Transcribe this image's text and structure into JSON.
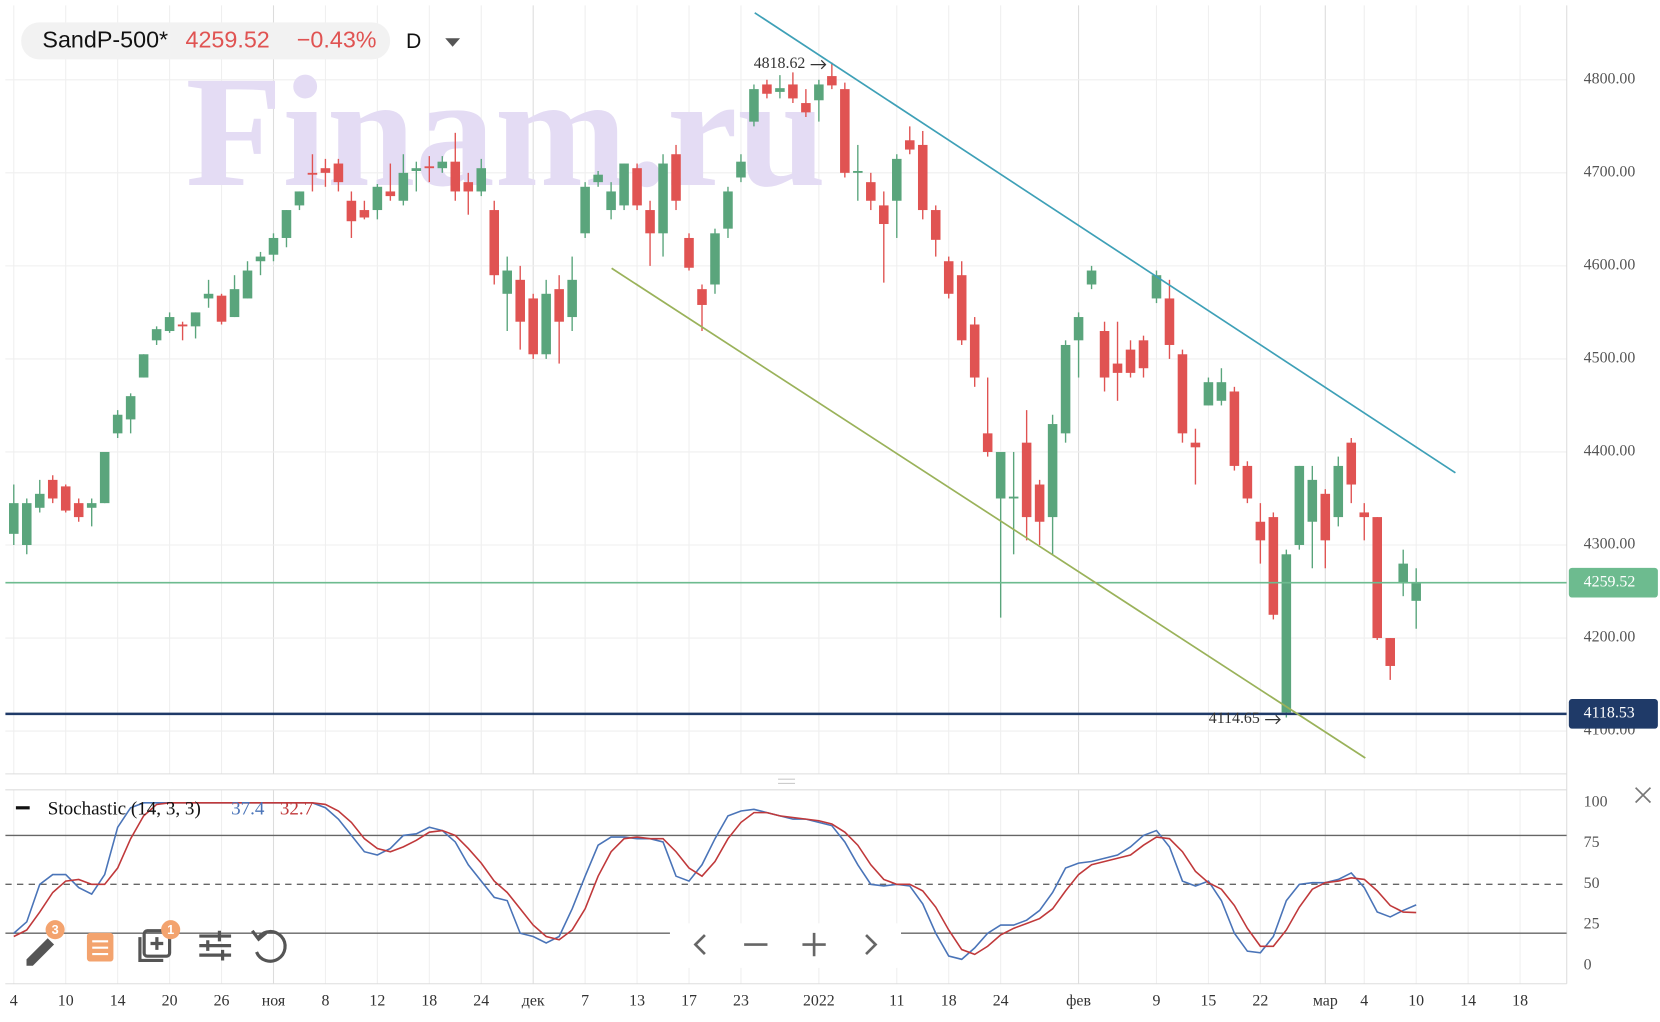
{
  "header": {
    "symbol": "SandP-500*",
    "change": "−0.43%",
    "interval": "D"
  },
  "watermark": "Finam.ru",
  "toolbar": {
    "badges": [
      "3",
      "1"
    ]
  },
  "chart_data": [
    {
      "type": "candlestick",
      "categories": [
        "4",
        null,
        null,
        null,
        "10",
        null,
        null,
        null,
        "14",
        null,
        null,
        null,
        "20",
        null,
        null,
        null,
        "26",
        null,
        null,
        null,
        "ноя",
        null,
        null,
        null,
        "8",
        null,
        null,
        null,
        "12",
        null,
        null,
        null,
        "18",
        null,
        null,
        null,
        "24",
        null,
        null,
        null,
        "дек",
        null,
        null,
        null,
        "7",
        null,
        null,
        null,
        "13",
        null,
        null,
        null,
        "17",
        null,
        null,
        null,
        "23",
        null,
        null,
        null,
        null,
        null,
        "2022",
        null,
        null,
        null,
        null,
        null,
        "11",
        null,
        null,
        null,
        "18",
        null,
        null,
        null,
        "24",
        null,
        null,
        null,
        null,
        null,
        "фев",
        null,
        null,
        null,
        null,
        null,
        "9",
        null,
        null,
        null,
        "15",
        null,
        null,
        null,
        "22",
        null,
        null,
        null,
        null,
        "мар",
        null,
        null,
        "4",
        null,
        null,
        null,
        "10",
        null,
        null,
        null,
        "14",
        null,
        null,
        null,
        "18"
      ],
      "open": [
        4312,
        4300,
        4340,
        4370,
        4363,
        4345,
        4340,
        4345,
        4420,
        4435,
        4480,
        4520,
        4530,
        4537,
        4535,
        4565,
        4568,
        4545,
        4565,
        4605,
        4612,
        4630,
        4665,
        4700,
        4705,
        4710,
        4670,
        4660,
        4660,
        4680,
        4670,
        4702,
        4707,
        4705,
        4712,
        4690,
        4680,
        4660,
        4570,
        4585,
        4565,
        4505,
        4575,
        4545,
        4635,
        4690,
        4660,
        4665,
        4705,
        4660,
        4635,
        4720,
        4630,
        4575,
        4580,
        4640,
        4695,
        4755,
        4795,
        4787,
        4795,
        4775,
        4778,
        4804,
        4790,
        4700,
        4690,
        4665,
        4670,
        4735,
        4730,
        4660,
        4605,
        4590,
        4537,
        4420,
        4350,
        4350,
        4410,
        4365,
        4330,
        4420,
        4520,
        4580,
        4530,
        4495,
        4510,
        4520,
        4565,
        4565,
        4505,
        4410,
        4450,
        4455,
        4465,
        4385,
        4325,
        4330,
        4120,
        4300,
        4325,
        4355,
        4330,
        4410,
        4335,
        4330,
        4200,
        4260,
        4240,
        null,
        null,
        null,
        null,
        null,
        null,
        null,
        null
      ],
      "high": [
        4365,
        4350,
        4370,
        4375,
        4365,
        4350,
        4350,
        4400,
        4445,
        4463,
        4505,
        4535,
        4550,
        4540,
        4550,
        4585,
        4570,
        4590,
        4605,
        4615,
        4635,
        4660,
        4680,
        4720,
        4715,
        4715,
        4680,
        4670,
        4688,
        4710,
        4720,
        4712,
        4718,
        4718,
        4743,
        4700,
        4715,
        4670,
        4610,
        4600,
        4570,
        4585,
        4590,
        4610,
        4690,
        4702,
        4690,
        4710,
        4710,
        4670,
        4720,
        4730,
        4635,
        4580,
        4640,
        4685,
        4720,
        4795,
        4800,
        4805,
        4808,
        4790,
        4800,
        4818.62,
        4797,
        4730,
        4700,
        4680,
        4720,
        4750,
        4745,
        4665,
        4610,
        4605,
        4545,
        4480,
        4400,
        4400,
        4445,
        4370,
        4440,
        4520,
        4550,
        4600,
        4540,
        4540,
        4520,
        4525,
        4595,
        4585,
        4510,
        4425,
        4480,
        4490,
        4470,
        4390,
        4345,
        4335,
        4295,
        4385,
        4385,
        4360,
        4395,
        4415,
        4345,
        4330,
        4200,
        4295,
        4275,
        null,
        null,
        null,
        null,
        null,
        null,
        null,
        null
      ],
      "low": [
        4300,
        4290,
        4335,
        4345,
        4335,
        4325,
        4320,
        4345,
        4415,
        4420,
        4480,
        4515,
        4528,
        4520,
        4522,
        4555,
        4537,
        4545,
        4565,
        4590,
        4605,
        4620,
        4660,
        4680,
        4685,
        4680,
        4630,
        4650,
        4650,
        4670,
        4665,
        4680,
        4690,
        4700,
        4670,
        4655,
        4675,
        4580,
        4530,
        4510,
        4500,
        4500,
        4495,
        4530,
        4630,
        4685,
        4650,
        4660,
        4660,
        4600,
        4610,
        4660,
        4595,
        4530,
        4570,
        4630,
        4690,
        4750,
        4780,
        4780,
        4775,
        4760,
        4755,
        4790,
        4695,
        4670,
        4660,
        4582,
        4630,
        4720,
        4650,
        4610,
        4565,
        4515,
        4470,
        4395,
        4222,
        4290,
        4305,
        4300,
        4290,
        4410,
        4480,
        4575,
        4465,
        4455,
        4480,
        4480,
        4560,
        4500,
        4410,
        4365,
        4450,
        4450,
        4380,
        4345,
        4280,
        4220,
        4114.65,
        4295,
        4275,
        4275,
        4320,
        4345,
        4305,
        4198,
        4155,
        4245,
        4210,
        null,
        null,
        null,
        null,
        null,
        null,
        null,
        null
      ],
      "close": [
        4345,
        4345,
        4355,
        4350,
        4337,
        4330,
        4345,
        4400,
        4440,
        4460,
        4505,
        4532,
        4545,
        4535,
        4550,
        4570,
        4540,
        4575,
        4595,
        4610,
        4630,
        4660,
        4680,
        4698,
        4700,
        4690,
        4648,
        4652,
        4685,
        4675,
        4700,
        4705,
        4705,
        4712,
        4680,
        4680,
        4705,
        4590,
        4595,
        4540,
        4505,
        4570,
        4540,
        4585,
        4685,
        4698,
        4680,
        4710,
        4665,
        4635,
        4710,
        4670,
        4598,
        4558,
        4635,
        4680,
        4712,
        4790,
        4785,
        4791,
        4780,
        4765,
        4795,
        4794,
        4700,
        4702,
        4670,
        4645,
        4715,
        4725,
        4660,
        4628,
        4570,
        4520,
        4480,
        4400,
        4400,
        4352,
        4330,
        4325,
        4430,
        4515,
        4545,
        4595,
        4480,
        4485,
        4485,
        4490,
        4590,
        4515,
        4420,
        4405,
        4475,
        4475,
        4385,
        4350,
        4305,
        4225,
        4290,
        4385,
        4370,
        4305,
        4385,
        4365,
        4330,
        4200,
        4170,
        4280,
        4259.52,
        null,
        null,
        null,
        null,
        null,
        null,
        null,
        null
      ],
      "up_color": "#5aa57c",
      "down_color": "#e05352",
      "ylim": [
        4054,
        4880
      ],
      "yticks": [
        {
          "value": 4100,
          "label": "4100.00"
        },
        {
          "value": 4200,
          "label": "4200.00"
        },
        {
          "value": 4300,
          "label": "4300.00"
        },
        {
          "value": 4400,
          "label": "4400.00"
        },
        {
          "value": 4500,
          "label": "4500.00"
        },
        {
          "value": 4600,
          "label": "4600.00"
        },
        {
          "value": 4700,
          "label": "4700.00"
        },
        {
          "value": 4800,
          "label": "4800.00"
        }
      ],
      "price_lines": [
        {
          "value": 4118.53,
          "color": "#1f3a68"
        }
      ],
      "last_line_color": "#6dbb8f",
      "grid": true
    },
    {
      "type": "line",
      "title": "Stochastic (14, 3, 3)",
      "series": [
        {
          "color": "#4a74b8",
          "values": [
            20,
            27,
            50,
            56,
            56,
            48,
            44,
            56,
            85,
            97,
            100,
            100,
            100,
            100,
            100,
            100,
            100,
            100,
            100,
            100,
            100,
            100,
            100,
            100,
            97,
            90,
            80,
            70,
            68,
            72,
            80,
            81,
            85,
            83,
            76,
            62,
            52,
            42,
            40,
            20,
            18,
            14,
            18,
            35,
            55,
            74,
            79,
            79,
            78,
            78,
            76,
            55,
            52,
            62,
            78,
            92,
            95,
            96,
            94,
            92,
            90,
            90,
            88,
            86,
            76,
            62,
            50,
            49,
            50,
            49,
            38,
            20,
            6,
            4,
            11,
            20,
            25,
            25,
            28,
            34,
            45,
            60,
            63,
            64,
            66,
            68,
            73,
            80,
            83,
            73,
            52,
            49,
            52,
            40,
            20,
            9,
            8,
            18,
            40,
            50,
            51,
            51,
            53,
            57,
            48,
            33,
            30,
            34,
            37.4,
            null,
            null,
            null,
            null,
            null,
            null,
            null,
            null
          ]
        },
        {
          "color": "#c0393b",
          "values": [
            18,
            22,
            33,
            45,
            52,
            53,
            50,
            50,
            60,
            78,
            92,
            99,
            100,
            100,
            100,
            100,
            100,
            100,
            100,
            100,
            100,
            100,
            100,
            100,
            99,
            95,
            88,
            78,
            72,
            70,
            73,
            77,
            82,
            83,
            80,
            72,
            63,
            52,
            45,
            35,
            25,
            18,
            16,
            22,
            35,
            55,
            70,
            78,
            79,
            78,
            78,
            70,
            60,
            55,
            64,
            78,
            88,
            94,
            94,
            92,
            91,
            90,
            89,
            87,
            82,
            74,
            62,
            53,
            50,
            50,
            46,
            36,
            22,
            10,
            7,
            12,
            19,
            23,
            26,
            29,
            35,
            46,
            56,
            62,
            64,
            66,
            68,
            74,
            79,
            78,
            70,
            58,
            51,
            47,
            37,
            23,
            12,
            12,
            22,
            36,
            47,
            51,
            52,
            54,
            53,
            46,
            37,
            33,
            32.7,
            null,
            null,
            null,
            null,
            null,
            null,
            null,
            null
          ]
        }
      ],
      "ylim": [
        -11,
        108
      ],
      "yticks": [
        0,
        25,
        50,
        75,
        100
      ],
      "levels": [
        80,
        50,
        20
      ],
      "level_styles": [
        "solid",
        "dashed",
        "solid"
      ]
    }
  ]
}
